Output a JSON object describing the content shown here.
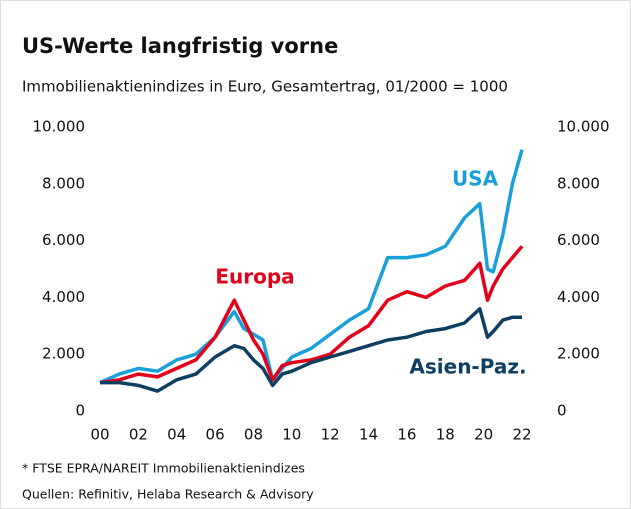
{
  "chart_data": {
    "type": "line",
    "title": "US-Werte langfristig vorne",
    "subtitle": "Immobilienaktienindizes in Euro, Gesamtertrag, 01/2000 = 1000",
    "notes": [
      "* FTSE EPRA/NAREIT Immobilienaktienindizes",
      "Quellen: Refinitiv, Helaba Research & Advisory"
    ],
    "x": [
      2000,
      2001,
      2002,
      2003,
      2004,
      2005,
      2006,
      2007,
      2007.5,
      2008,
      2008.5,
      2009,
      2009.5,
      2010,
      2011,
      2012,
      2013,
      2014,
      2015,
      2016,
      2017,
      2018,
      2019,
      2019.8,
      2020.2,
      2020.5,
      2021,
      2021.5,
      2022
    ],
    "series": [
      {
        "name": "USA",
        "color": "#1a9fdb",
        "values": [
          1000,
          1300,
          1500,
          1400,
          1800,
          2000,
          2600,
          3500,
          2900,
          2700,
          2500,
          1100,
          1500,
          1900,
          2200,
          2700,
          3200,
          3600,
          5400,
          5400,
          5500,
          5800,
          6800,
          7300,
          5000,
          4900,
          6200,
          8000,
          9200
        ]
      },
      {
        "name": "Europa",
        "color": "#e3001b",
        "values": [
          1000,
          1100,
          1300,
          1200,
          1500,
          1800,
          2600,
          3900,
          3200,
          2500,
          2000,
          1100,
          1600,
          1700,
          1800,
          2000,
          2600,
          3000,
          3900,
          4200,
          4000,
          4400,
          4600,
          5200,
          3900,
          4400,
          5000,
          5400,
          5800
        ]
      },
      {
        "name": "Asien-Paz.",
        "color": "#0d3f63",
        "values": [
          1000,
          1000,
          900,
          700,
          1100,
          1300,
          1900,
          2300,
          2200,
          1800,
          1500,
          900,
          1300,
          1400,
          1700,
          1900,
          2100,
          2300,
          2500,
          2600,
          2800,
          2900,
          3100,
          3600,
          2600,
          2800,
          3200,
          3300,
          3300
        ]
      }
    ],
    "xlim": [
      2000,
      2022
    ],
    "xticks": [
      {
        "value": 2000,
        "label": "00"
      },
      {
        "value": 2002,
        "label": "02"
      },
      {
        "value": 2004,
        "label": "04"
      },
      {
        "value": 2006,
        "label": "06"
      },
      {
        "value": 2008,
        "label": "08"
      },
      {
        "value": 2010,
        "label": "10"
      },
      {
        "value": 2012,
        "label": "12"
      },
      {
        "value": 2014,
        "label": "14"
      },
      {
        "value": 2016,
        "label": "16"
      },
      {
        "value": 2018,
        "label": "18"
      },
      {
        "value": 2020,
        "label": "20"
      },
      {
        "value": 2022,
        "label": "22"
      }
    ],
    "ylim": [
      0,
      10000
    ],
    "yticks": [
      0,
      {
        "value": 2000,
        "label": "2.000"
      },
      {
        "value": 4000,
        "label": "4.000"
      },
      {
        "value": 6000,
        "label": "6.000"
      },
      {
        "value": 8000,
        "label": "8.000"
      },
      {
        "value": 10000,
        "label": "10.000"
      }
    ],
    "right_axis": true,
    "grid": false
  }
}
